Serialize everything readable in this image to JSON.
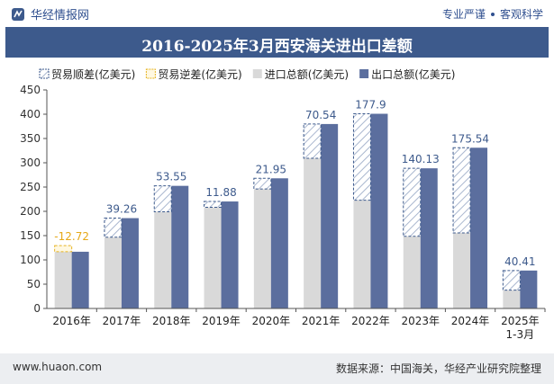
{
  "header": {
    "brand": "华经情报网",
    "tagline_left": "专业严谨",
    "tagline_right": "客观科学"
  },
  "footer": {
    "site": "www.huaon.com",
    "source": "数据来源：中国海关，华经产业研究院整理"
  },
  "chart_data": {
    "type": "bar",
    "title": "2016-2025年3月西安海关进出口差额",
    "categories": [
      "2016年",
      "2017年",
      "2018年",
      "2019年",
      "2020年",
      "2021年",
      "2022年",
      "2023年",
      "2024年",
      "2025年\n1-3月"
    ],
    "series": [
      {
        "name": "进口总额(亿美元)",
        "values": [
          129.5,
          146.7,
          199.0,
          208.4,
          246.0,
          309.3,
          223.0,
          148.5,
          155.5,
          37.7
        ]
      },
      {
        "name": "出口总额(亿美元)",
        "values": [
          116.8,
          186.0,
          252.5,
          220.3,
          268.0,
          379.8,
          400.9,
          288.6,
          331.0,
          78.1
        ]
      },
      {
        "name": "贸易顺差(亿美元)",
        "values": [
          null,
          39.26,
          53.55,
          11.88,
          21.95,
          70.54,
          177.9,
          140.13,
          175.54,
          40.41
        ]
      },
      {
        "name": "贸易逆差(亿美元)",
        "values": [
          -12.72,
          null,
          null,
          null,
          null,
          null,
          null,
          null,
          null,
          null
        ]
      }
    ],
    "data_labels": [
      "-12.72",
      "39.26",
      "53.55",
      "11.88",
      "21.95",
      "70.54",
      "177.9",
      "140.13",
      "175.54",
      "40.41"
    ],
    "ylim": [
      0,
      450
    ],
    "yticks": [
      0,
      50,
      100,
      150,
      200,
      250,
      300,
      350,
      400,
      450
    ],
    "legend": "top",
    "colors": {
      "import": "#d9d9d9",
      "export": "#5b6e9e",
      "surplus_border": "#3d5a8c",
      "deficit_border": "#e6b422",
      "title_bar": "#3d5a8c",
      "data_label": "#3d5a8c",
      "deficit_label": "#e6a817"
    }
  }
}
